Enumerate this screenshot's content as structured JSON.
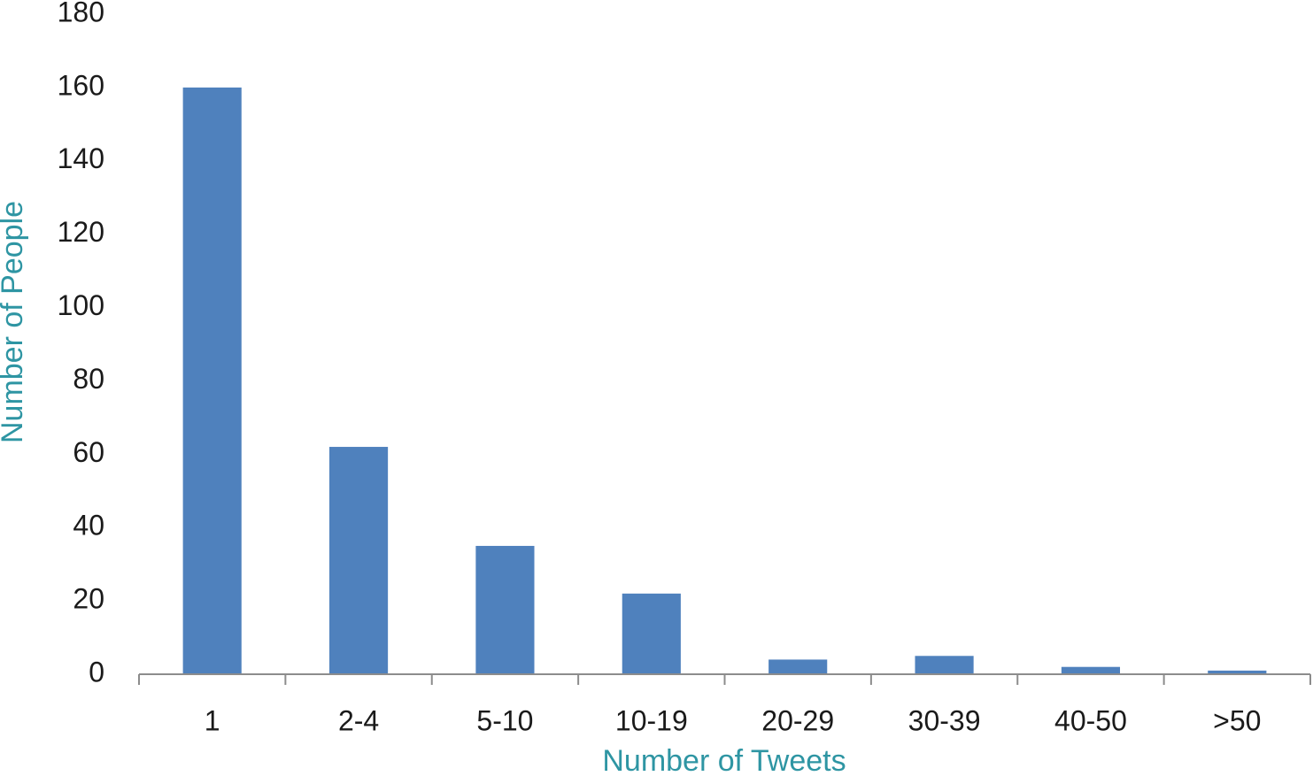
{
  "chart_data": {
    "type": "bar",
    "x_label": "Number of Tweets",
    "y_label": "Number of People",
    "categories": [
      "1",
      "2-4",
      "5-10",
      "10-19",
      "20-29",
      "30-39",
      "40-50",
      ">50"
    ],
    "values": [
      160,
      62,
      35,
      22,
      4,
      5,
      2,
      1
    ],
    "color": "#4f81bd",
    "ylim": [
      0,
      180
    ],
    "yticks": [
      0,
      20,
      40,
      60,
      80,
      100,
      120,
      140,
      160,
      180
    ],
    "grid": false
  }
}
